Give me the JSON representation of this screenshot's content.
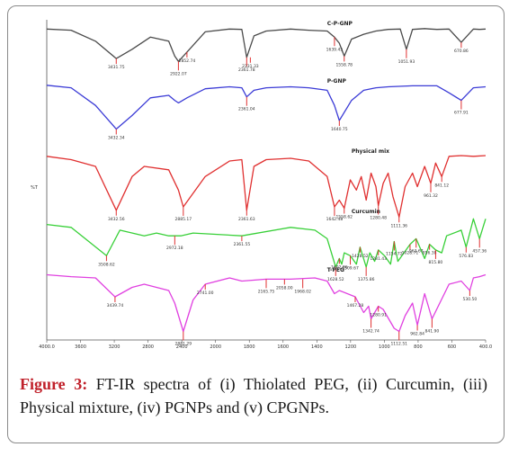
{
  "caption": {
    "label": "Figure 3:",
    "text": " FT-IR spectra of (i) Thiolated PEG, (ii) Curcumin, (iii) Physical mixture, (iv) PGNPs and (v) CPGNPs."
  },
  "chart_data": {
    "type": "line",
    "title": "",
    "xlabel": "",
    "ylabel": "%T",
    "xlim": [
      4000,
      400
    ],
    "x_ticks": [
      "4000.0",
      "3600",
      "3200",
      "2800",
      "2400",
      "2000",
      "1800",
      "1600",
      "1400",
      "1200",
      "1000",
      "800",
      "600",
      "400.0"
    ],
    "series": [
      {
        "name": "C-P-GNP",
        "color": "#4a4a4a",
        "x": [
          4000,
          3800,
          3600,
          3430,
          3300,
          3150,
          3000,
          2950,
          2920,
          2850,
          2700,
          2500,
          2400,
          2360,
          2300,
          2200,
          2000,
          1850,
          1700,
          1640,
          1600,
          1560,
          1500,
          1400,
          1300,
          1200,
          1100,
          1050,
          1000,
          900,
          850,
          800,
          700,
          600,
          500,
          450,
          400
        ],
        "y": [
          0.05,
          0.08,
          0.35,
          0.78,
          0.55,
          0.25,
          0.35,
          0.72,
          0.85,
          0.62,
          0.12,
          0.05,
          0.06,
          0.75,
          0.22,
          0.1,
          0.05,
          0.08,
          0.1,
          0.25,
          0.4,
          0.72,
          0.3,
          0.18,
          0.1,
          0.06,
          0.05,
          0.55,
          0.06,
          0.04,
          0.05,
          0.06,
          0.05,
          0.38,
          0.05,
          0.06,
          0.05
        ]
      },
      {
        "name": "P-GNP",
        "color": "#3b3bd6",
        "x": [
          4000,
          3800,
          3600,
          3430,
          3300,
          3150,
          3000,
          2950,
          2920,
          2850,
          2700,
          2500,
          2400,
          2360,
          2300,
          2200,
          2000,
          1850,
          1700,
          1640,
          1600,
          1500,
          1400,
          1300,
          1200,
          1000,
          800,
          700,
          600,
          500,
          400
        ],
        "y": [
          0.05,
          0.1,
          0.45,
          0.92,
          0.65,
          0.3,
          0.25,
          0.35,
          0.4,
          0.3,
          0.12,
          0.08,
          0.1,
          0.28,
          0.15,
          0.1,
          0.08,
          0.1,
          0.15,
          0.45,
          0.75,
          0.35,
          0.15,
          0.1,
          0.08,
          0.06,
          0.06,
          0.2,
          0.35,
          0.1,
          0.08
        ]
      },
      {
        "name": "Physical mix",
        "color": "#e03030",
        "x": [
          4000,
          3800,
          3600,
          3430,
          3300,
          3200,
          3000,
          2920,
          2880,
          2700,
          2500,
          2400,
          2360,
          2300,
          2200,
          2000,
          1850,
          1700,
          1640,
          1600,
          1560,
          1510,
          1460,
          1420,
          1380,
          1340,
          1300,
          1280,
          1240,
          1200,
          1160,
          1110,
          1060,
          1000,
          960,
          900,
          850,
          810,
          760,
          700,
          600,
          500,
          400
        ],
        "y": [
          0.05,
          0.1,
          0.2,
          0.85,
          0.35,
          0.2,
          0.25,
          0.55,
          0.8,
          0.35,
          0.12,
          0.1,
          0.85,
          0.2,
          0.1,
          0.08,
          0.12,
          0.35,
          0.8,
          0.7,
          0.82,
          0.4,
          0.55,
          0.35,
          0.7,
          0.3,
          0.5,
          0.78,
          0.45,
          0.3,
          0.65,
          0.95,
          0.5,
          0.3,
          0.5,
          0.2,
          0.45,
          0.15,
          0.35,
          0.05,
          0.04,
          0.05,
          0.04
        ]
      },
      {
        "name": "Curcumin",
        "color": "#38d038",
        "x": [
          4000,
          3800,
          3510,
          3400,
          3200,
          3100,
          3000,
          2900,
          2800,
          2400,
          2000,
          1800,
          1700,
          1630,
          1600,
          1580,
          1560,
          1510,
          1460,
          1430,
          1380,
          1350,
          1310,
          1280,
          1230,
          1180,
          1150,
          1120,
          1020,
          970,
          900,
          860,
          810,
          760,
          720,
          600,
          560,
          500,
          450,
          400
        ],
        "y": [
          0.2,
          0.25,
          0.75,
          0.3,
          0.4,
          0.35,
          0.4,
          0.4,
          0.35,
          0.4,
          0.25,
          0.3,
          0.45,
          0.95,
          0.8,
          0.9,
          0.7,
          0.75,
          0.9,
          0.6,
          0.95,
          0.7,
          0.85,
          0.65,
          0.75,
          0.9,
          0.5,
          0.85,
          0.55,
          0.45,
          0.8,
          0.55,
          0.65,
          0.7,
          0.4,
          0.3,
          0.6,
          0.1,
          0.45,
          0.1
        ]
      },
      {
        "name": "T-PEG",
        "color": "#e040e0",
        "x": [
          4000,
          3800,
          3600,
          3440,
          3300,
          3200,
          3100,
          3000,
          2950,
          2880,
          2800,
          2700,
          2500,
          2400,
          2200,
          2000,
          1800,
          1700,
          1640,
          1600,
          1470,
          1400,
          1360,
          1340,
          1280,
          1240,
          1150,
          1110,
          1060,
          1000,
          960,
          900,
          840,
          700,
          600,
          530,
          500,
          450,
          400
        ],
        "y": [
          0.05,
          0.08,
          0.1,
          0.4,
          0.25,
          0.2,
          0.25,
          0.3,
          0.5,
          0.95,
          0.45,
          0.2,
          0.1,
          0.15,
          0.12,
          0.12,
          0.1,
          0.15,
          0.35,
          0.3,
          0.4,
          0.65,
          0.55,
          0.75,
          0.55,
          0.6,
          0.9,
          0.95,
          0.7,
          0.5,
          0.85,
          0.35,
          0.75,
          0.2,
          0.15,
          0.3,
          0.1,
          0.08,
          0.05
        ]
      }
    ],
    "peak_labels": [
      {
        "series": "C-P-GNP",
        "x": 3430,
        "text": "3431.75"
      },
      {
        "series": "C-P-GNP",
        "x": 2920,
        "text": "2922.07"
      },
      {
        "series": "C-P-GNP",
        "x": 2850,
        "text": "2852.74"
      },
      {
        "series": "C-P-GNP",
        "x": 2360,
        "text": "2361.78"
      },
      {
        "series": "C-P-GNP",
        "x": 2330,
        "text": "2331.33"
      },
      {
        "series": "C-P-GNP",
        "x": 1640,
        "text": "1639.45"
      },
      {
        "series": "C-P-GNP",
        "x": 1560,
        "text": "1558.78"
      },
      {
        "series": "C-P-GNP",
        "x": 1050,
        "text": "1051.93"
      },
      {
        "series": "C-P-GNP",
        "x": 600,
        "text": "670.86"
      },
      {
        "series": "P-GNP",
        "x": 3430,
        "text": "3432.34"
      },
      {
        "series": "P-GNP",
        "x": 2360,
        "text": "2361.04"
      },
      {
        "series": "P-GNP",
        "x": 1600,
        "text": "1640.75"
      },
      {
        "series": "P-GNP",
        "x": 600,
        "text": "677.91"
      },
      {
        "series": "Physical mix",
        "x": 3430,
        "text": "3432.56"
      },
      {
        "series": "Physical mix",
        "x": 2880,
        "text": "2885.17"
      },
      {
        "series": "Physical mix",
        "x": 2360,
        "text": "2361.63"
      },
      {
        "series": "Physical mix",
        "x": 1640,
        "text": "1642.48"
      },
      {
        "series": "Physical mix",
        "x": 1560,
        "text": "1558.62"
      },
      {
        "series": "Physical mix",
        "x": 1280,
        "text": "1280.48"
      },
      {
        "series": "Physical mix",
        "x": 1110,
        "text": "1111.36"
      },
      {
        "series": "Physical mix",
        "x": 850,
        "text": "961.32"
      },
      {
        "series": "Physical mix",
        "x": 760,
        "text": "841.12"
      },
      {
        "series": "Curcumin",
        "x": 3510,
        "text": "3508.62"
      },
      {
        "series": "Curcumin",
        "x": 2950,
        "text": "2972.18"
      },
      {
        "series": "Curcumin",
        "x": 2400,
        "text": "2361.55"
      },
      {
        "series": "Curcumin",
        "x": 1630,
        "text": "1628.52"
      },
      {
        "series": "Curcumin",
        "x": 1600,
        "text": "1602.86"
      },
      {
        "series": "Curcumin",
        "x": 1510,
        "text": "1509.67"
      },
      {
        "series": "Curcumin",
        "x": 1430,
        "text": "1428.52"
      },
      {
        "series": "Curcumin",
        "x": 1380,
        "text": "1375.86"
      },
      {
        "series": "Curcumin",
        "x": 1280,
        "text": "1281.43"
      },
      {
        "series": "Curcumin",
        "x": 1150,
        "text": "1154.72"
      },
      {
        "series": "Curcumin",
        "x": 1020,
        "text": "1028.71"
      },
      {
        "series": "Curcumin",
        "x": 970,
        "text": "963.67"
      },
      {
        "series": "Curcumin",
        "x": 860,
        "text": "856.38"
      },
      {
        "series": "Curcumin",
        "x": 810,
        "text": "815.80"
      },
      {
        "series": "Curcumin",
        "x": 560,
        "text": "576.83"
      },
      {
        "series": "Curcumin",
        "x": 450,
        "text": "457.36"
      },
      {
        "series": "T-PEG",
        "x": 3440,
        "text": "3439.74"
      },
      {
        "series": "T-PEG",
        "x": 2880,
        "text": "2881.29"
      },
      {
        "series": "T-PEG",
        "x": 2700,
        "text": "2741.00"
      },
      {
        "series": "T-PEG",
        "x": 2200,
        "text": "2165.75"
      },
      {
        "series": "T-PEG",
        "x": 2050,
        "text": "2058.00"
      },
      {
        "series": "T-PEG",
        "x": 1900,
        "text": "1968.02"
      },
      {
        "series": "T-PEG",
        "x": 1470,
        "text": "1467.28"
      },
      {
        "series": "T-PEG",
        "x": 1340,
        "text": "1342.74"
      },
      {
        "series": "T-PEG",
        "x": 1280,
        "text": "1280.91"
      },
      {
        "series": "T-PEG",
        "x": 1110,
        "text": "1112.51"
      },
      {
        "series": "T-PEG",
        "x": 960,
        "text": "962.84"
      },
      {
        "series": "T-PEG",
        "x": 840,
        "text": "841.90"
      },
      {
        "series": "T-PEG",
        "x": 530,
        "text": "530.50"
      }
    ]
  }
}
